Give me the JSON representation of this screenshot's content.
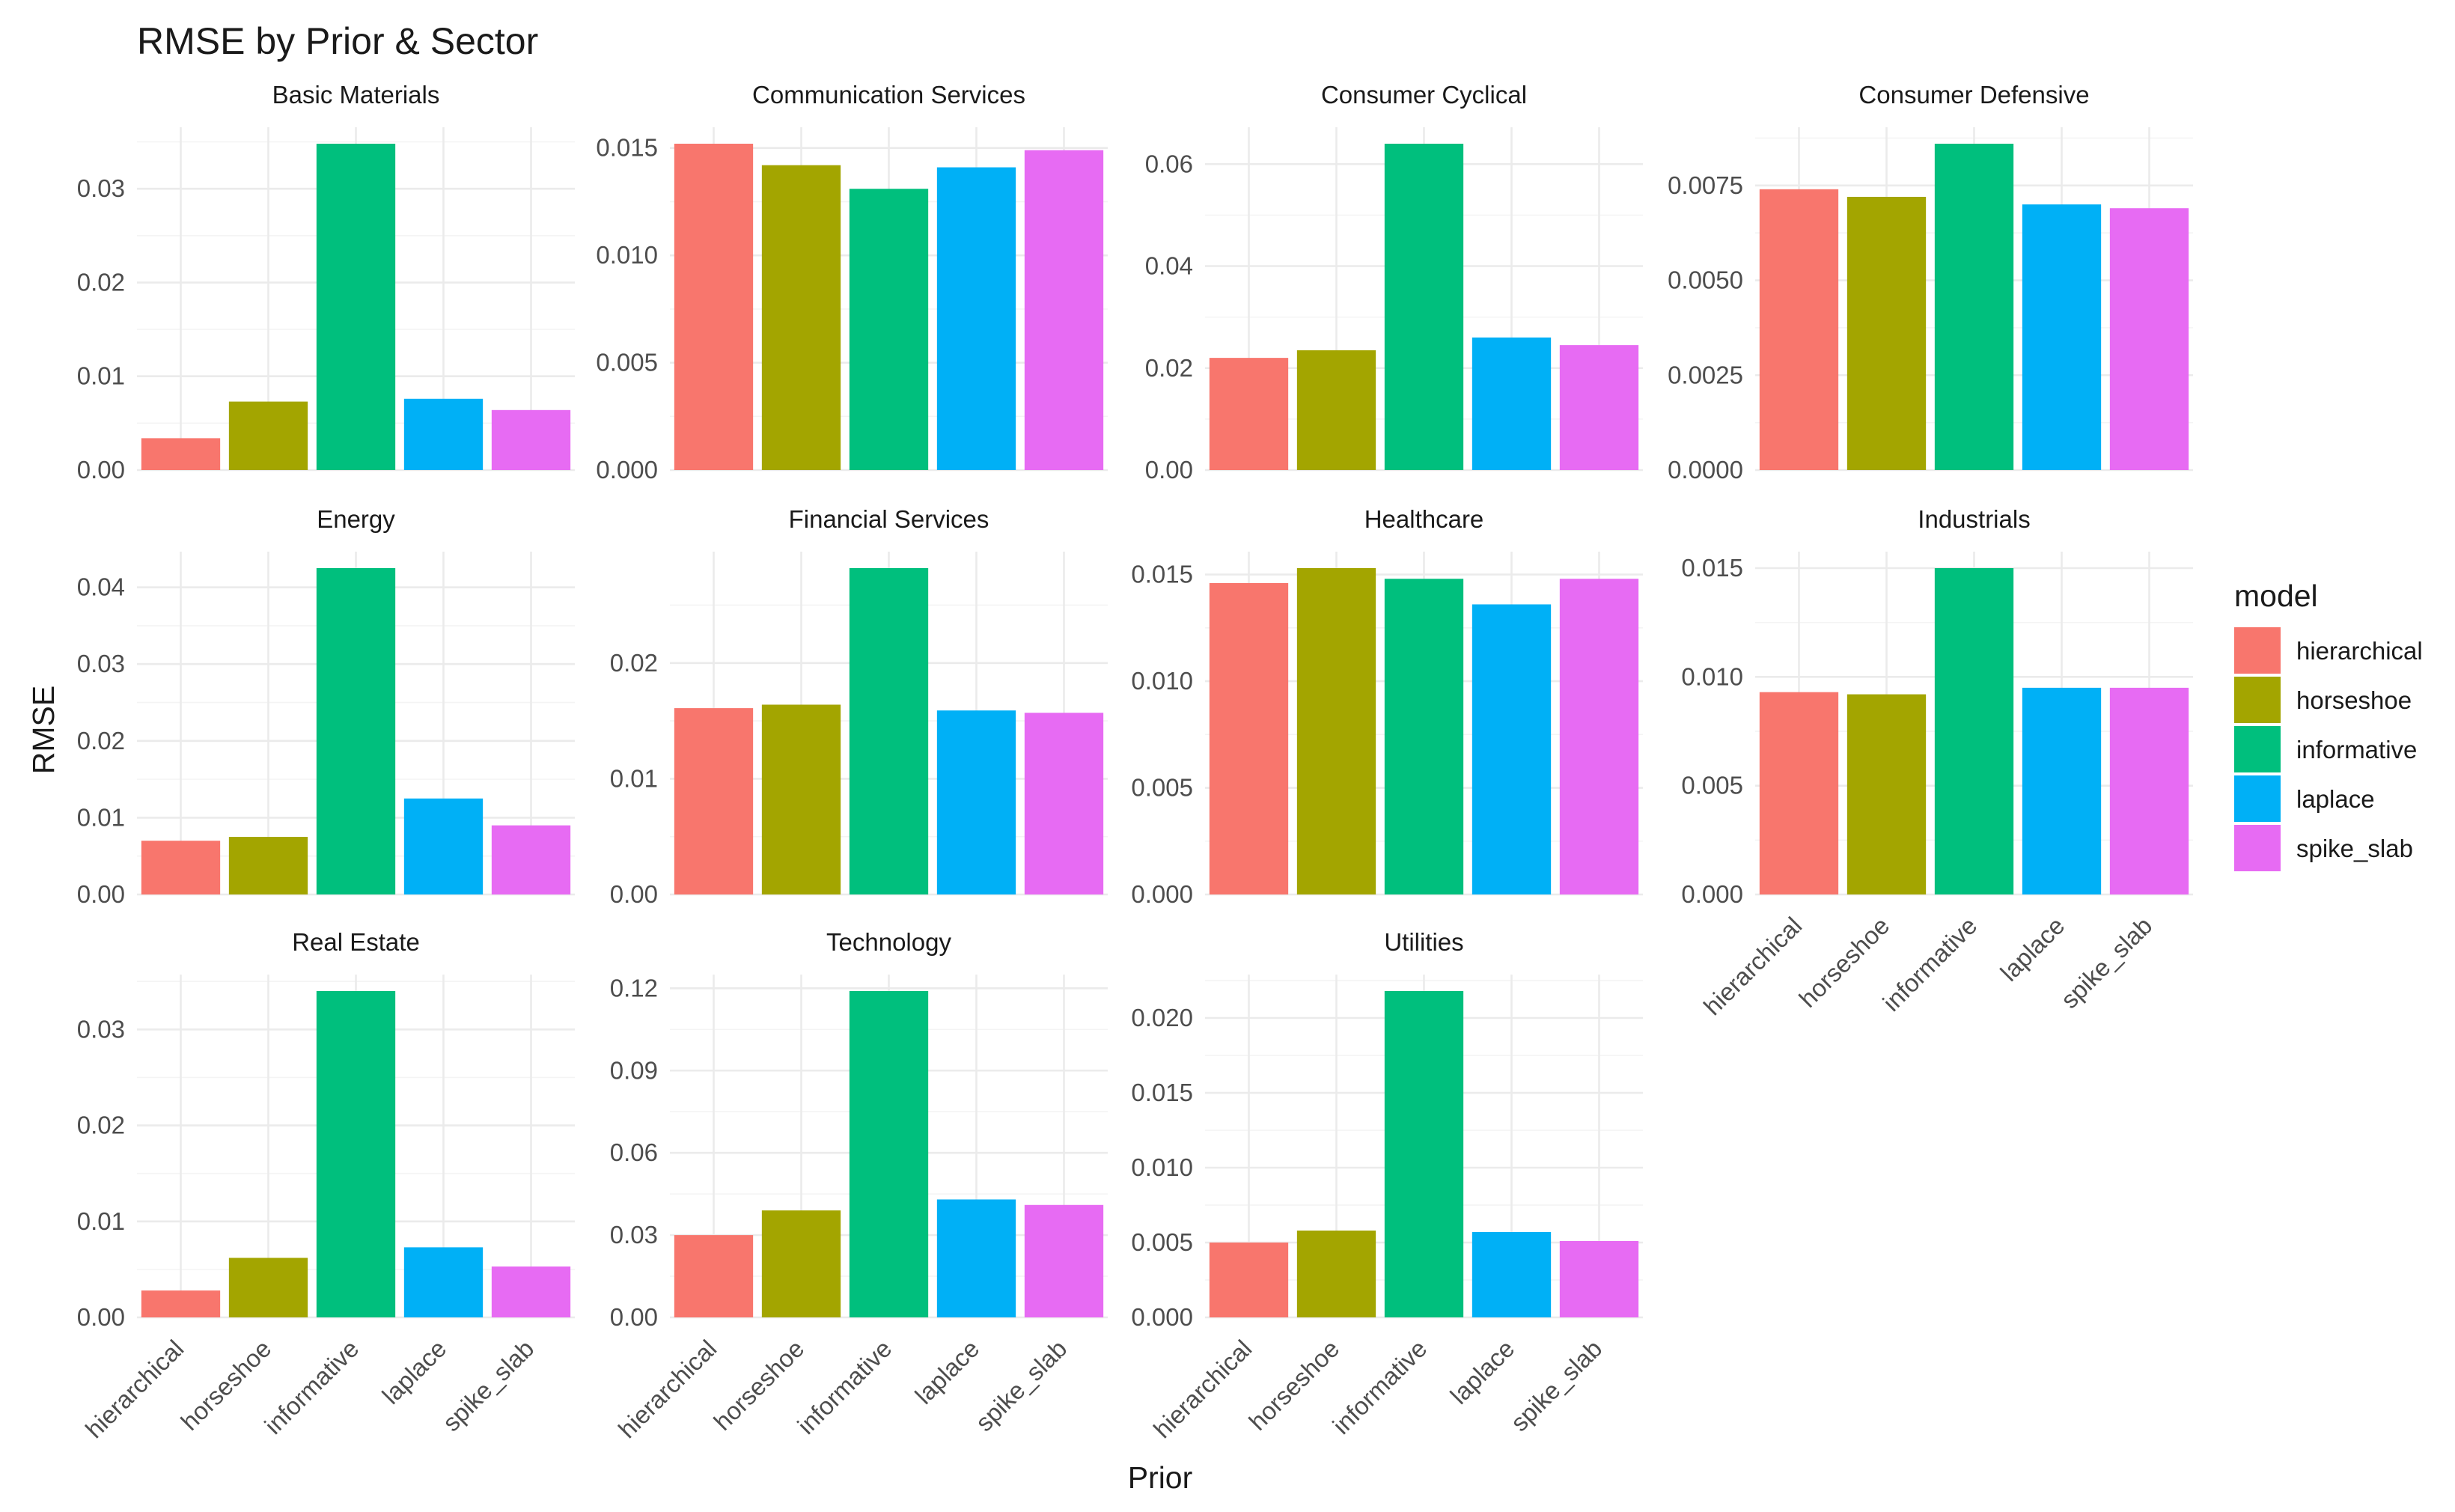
{
  "chart_data": {
    "type": "bar",
    "title": "RMSE by Prior & Sector",
    "xlabel": "Prior",
    "ylabel": "RMSE",
    "categories": [
      "hierarchical",
      "horseshoe",
      "informative",
      "laplace",
      "spike_slab"
    ],
    "legend": {
      "title": "model",
      "position": "right",
      "items": [
        {
          "label": "hierarchical",
          "color": "#F8766D"
        },
        {
          "label": "horseshoe",
          "color": "#A3A500"
        },
        {
          "label": "informative",
          "color": "#00BF7D"
        },
        {
          "label": "laplace",
          "color": "#00B0F6"
        },
        {
          "label": "spike_slab",
          "color": "#E76BF3"
        }
      ]
    },
    "facets": [
      {
        "name": "Basic Materials",
        "values": [
          0.0034,
          0.0073,
          0.0348,
          0.0076,
          0.0064
        ],
        "ylim": [
          0,
          0.0348
        ],
        "ticks": [
          0,
          0.01,
          0.02,
          0.03
        ],
        "tick_labels": [
          "0.00",
          "0.01",
          "0.02",
          "0.03"
        ]
      },
      {
        "name": "Communication Services",
        "values": [
          0.0152,
          0.0142,
          0.0131,
          0.0141,
          0.0149
        ],
        "ylim": [
          0,
          0.0152
        ],
        "ticks": [
          0,
          0.005,
          0.01,
          0.015
        ],
        "tick_labels": [
          "0.000",
          "0.005",
          "0.010",
          "0.015"
        ]
      },
      {
        "name": "Consumer Cyclical",
        "values": [
          0.022,
          0.0235,
          0.064,
          0.026,
          0.0245
        ],
        "ylim": [
          0,
          0.064
        ],
        "ticks": [
          0,
          0.02,
          0.04,
          0.06
        ],
        "tick_labels": [
          "0.00",
          "0.02",
          "0.04",
          "0.06"
        ]
      },
      {
        "name": "Consumer Defensive",
        "values": [
          0.0074,
          0.0072,
          0.0086,
          0.007,
          0.0069
        ],
        "ylim": [
          0,
          0.0086
        ],
        "ticks": [
          0,
          0.0025,
          0.005,
          0.0075
        ],
        "tick_labels": [
          "0.0000",
          "0.0025",
          "0.0050",
          "0.0075"
        ]
      },
      {
        "name": "Energy",
        "values": [
          0.007,
          0.0075,
          0.0425,
          0.0125,
          0.009
        ],
        "ylim": [
          0,
          0.0425
        ],
        "ticks": [
          0,
          0.01,
          0.02,
          0.03,
          0.04
        ],
        "tick_labels": [
          "0.00",
          "0.01",
          "0.02",
          "0.03",
          "0.04"
        ]
      },
      {
        "name": "Financial Services",
        "values": [
          0.0161,
          0.0164,
          0.0282,
          0.0159,
          0.0157
        ],
        "ylim": [
          0,
          0.0282
        ],
        "ticks": [
          0,
          0.01,
          0.02
        ],
        "tick_labels": [
          "0.00",
          "0.01",
          "0.02"
        ]
      },
      {
        "name": "Healthcare",
        "values": [
          0.0146,
          0.0153,
          0.0148,
          0.0136,
          0.0148
        ],
        "ylim": [
          0,
          0.0153
        ],
        "ticks": [
          0,
          0.005,
          0.01,
          0.015
        ],
        "tick_labels": [
          "0.000",
          "0.005",
          "0.010",
          "0.015"
        ]
      },
      {
        "name": "Industrials",
        "values": [
          0.0093,
          0.0092,
          0.015,
          0.0095,
          0.0095
        ],
        "ylim": [
          0,
          0.015
        ],
        "ticks": [
          0,
          0.005,
          0.01,
          0.015
        ],
        "tick_labels": [
          "0.000",
          "0.005",
          "0.010",
          "0.015"
        ]
      },
      {
        "name": "Real Estate",
        "values": [
          0.0028,
          0.0062,
          0.034,
          0.0073,
          0.0053
        ],
        "ylim": [
          0,
          0.034
        ],
        "ticks": [
          0,
          0.01,
          0.02,
          0.03
        ],
        "tick_labels": [
          "0.00",
          "0.01",
          "0.02",
          "0.03"
        ]
      },
      {
        "name": "Technology",
        "values": [
          0.03,
          0.039,
          0.119,
          0.043,
          0.041
        ],
        "ylim": [
          0,
          0.119
        ],
        "ticks": [
          0,
          0.03,
          0.06,
          0.09,
          0.12
        ],
        "tick_labels": [
          "0.00",
          "0.03",
          "0.06",
          "0.09",
          "0.12"
        ]
      },
      {
        "name": "Utilities",
        "values": [
          0.005,
          0.0058,
          0.0218,
          0.0057,
          0.0051
        ],
        "ylim": [
          0,
          0.0218
        ],
        "ticks": [
          0,
          0.005,
          0.01,
          0.015,
          0.02
        ],
        "tick_labels": [
          "0.000",
          "0.005",
          "0.010",
          "0.015",
          "0.020"
        ]
      }
    ]
  }
}
